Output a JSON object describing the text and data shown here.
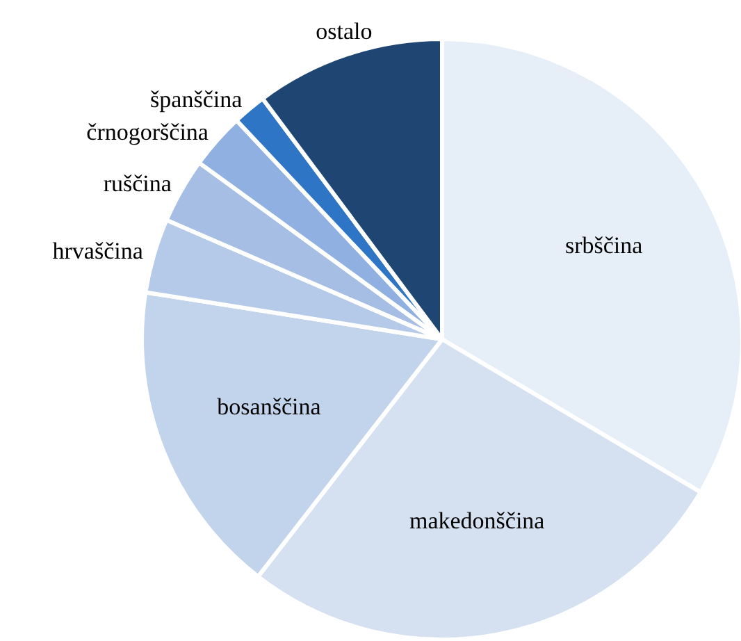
{
  "chart_data": {
    "type": "pie",
    "categories": [
      "srbščina",
      "makedonščina",
      "bosanščina",
      "hrvaščina",
      "ruščina",
      "črnogorščina",
      "španščina",
      "ostalo"
    ],
    "values": [
      33.5,
      27,
      17,
      4,
      3.5,
      3,
      1.8,
      10.2
    ],
    "colors": [
      "#e6eef8",
      "#d5e0f0",
      "#c2d3ec",
      "#b5c9e8",
      "#a6bee4",
      "#8fb0e0",
      "#2e75c6",
      "#1f4673"
    ],
    "legend": false
  }
}
